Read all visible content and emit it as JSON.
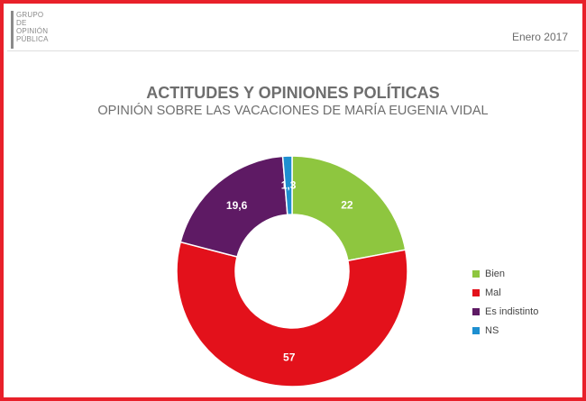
{
  "logo": {
    "lines": [
      "GRUPO",
      "DE",
      "OPINIÓN",
      "PÚBLICA"
    ]
  },
  "header": {
    "date": "Enero 2017"
  },
  "chart_data": {
    "type": "pie",
    "variant": "donut",
    "title": "ACTITUDES Y OPINIONES POLÍTICAS",
    "subtitle": "OPINIÓN SOBRE LAS VACACIONES DE MARÍA EUGENIA VIDAL",
    "categories": [
      "Bien",
      "Mal",
      "Es indistinto",
      "NS"
    ],
    "values": [
      22,
      57,
      19.6,
      1.3
    ],
    "labels": [
      "22",
      "57",
      "19,6",
      "1,3"
    ],
    "colors": [
      "#8ec63f",
      "#e3111b",
      "#5e1a64",
      "#1e8fd0"
    ],
    "legend_position": "right"
  },
  "legend": {
    "items": [
      {
        "label": "Bien",
        "color": "#8ec63f"
      },
      {
        "label": "Mal",
        "color": "#e3111b"
      },
      {
        "label": "Es indistinto",
        "color": "#5e1a64"
      },
      {
        "label": "NS",
        "color": "#1e8fd0"
      }
    ]
  }
}
